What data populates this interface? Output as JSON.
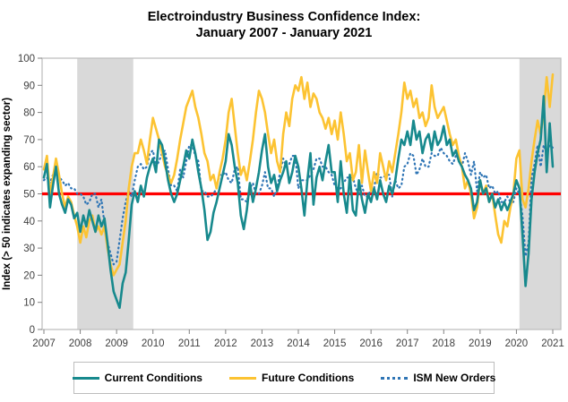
{
  "title": {
    "line1": "Electroindustry Business Confidence Index:",
    "line2": "January 2007 - January 2021"
  },
  "y_axis": {
    "label": "Index (> 50 indicates expanding sector)"
  },
  "colors": {
    "current_conditions": "#17898d",
    "future_conditions": "#fcc332",
    "ism_new_orders": "#2f75b5",
    "reference_line": "#ff0000",
    "recession_band": "#d9d9d9",
    "frame": "#bfbfbf",
    "tick": "#808080",
    "tick_text": "#404040"
  },
  "chart_data": {
    "type": "line",
    "title": "Electroindustry Business Confidence Index: January 2007 - January 2021",
    "xlabel": "",
    "ylabel": "Index (> 50 indicates expanding sector)",
    "ylim": [
      0,
      100
    ],
    "y_ticks": [
      0,
      10,
      20,
      30,
      40,
      50,
      60,
      70,
      80,
      90,
      100
    ],
    "x_tick_years": [
      "2007",
      "2008",
      "2009",
      "2010",
      "2011",
      "2012",
      "2013",
      "2014",
      "2015",
      "2016",
      "2017",
      "2018",
      "2019",
      "2020",
      "2021"
    ],
    "x_unit": "month_index_from_2007-01",
    "grid": false,
    "legend_position": "bottom",
    "reference_line": {
      "value": 50,
      "color": "#ff0000"
    },
    "recession_bands": [
      {
        "start_month": 11,
        "end_month": 29.5
      },
      {
        "start_month": 157,
        "end_month": null
      }
    ],
    "series": [
      {
        "name": "Current Conditions",
        "color": "#17898d",
        "dash": "solid",
        "values": [
          56,
          61,
          45,
          53,
          60,
          50,
          46,
          43,
          48,
          46,
          41,
          43,
          36,
          42,
          38,
          44,
          40,
          36,
          42,
          38,
          41,
          32,
          22,
          14,
          11,
          8,
          17,
          21,
          33,
          46,
          51,
          47,
          53,
          49,
          56,
          60,
          63,
          58,
          70,
          68,
          62,
          55,
          50,
          47,
          50,
          55,
          60,
          66,
          63,
          70,
          65,
          58,
          52,
          44,
          33,
          36,
          43,
          47,
          52,
          57,
          62,
          72,
          68,
          60,
          54,
          42,
          37,
          44,
          54,
          47,
          52,
          58,
          66,
          72,
          60,
          54,
          57,
          51,
          55,
          58,
          62,
          54,
          58,
          64,
          60,
          52,
          42,
          55,
          65,
          46,
          56,
          60,
          55,
          62,
          68,
          58,
          58,
          47,
          62,
          50,
          43,
          57,
          44,
          42,
          55,
          48,
          43,
          50,
          47,
          52,
          48,
          55,
          50,
          47,
          53,
          50,
          55,
          63,
          70,
          68,
          73,
          68,
          77,
          70,
          73,
          65,
          70,
          72,
          66,
          73,
          68,
          70,
          75,
          68,
          70,
          64,
          66,
          62,
          60,
          57,
          55,
          52,
          44,
          47,
          55,
          50,
          52,
          47,
          50,
          45,
          48,
          44,
          47,
          44,
          47,
          50,
          55,
          52,
          35,
          16,
          28,
          48,
          58,
          65,
          70,
          86,
          58,
          76,
          60
        ]
      },
      {
        "name": "Future Conditions",
        "color": "#fcc332",
        "dash": "solid",
        "values": [
          59,
          64,
          50,
          56,
          63,
          57,
          50,
          45,
          49,
          47,
          42,
          38,
          32,
          38,
          34,
          40,
          42,
          36,
          38,
          35,
          38,
          30,
          24,
          20,
          22,
          24,
          32,
          40,
          52,
          60,
          65,
          65,
          70,
          66,
          61,
          70,
          78,
          74,
          70,
          65,
          60,
          57,
          54,
          57,
          63,
          70,
          76,
          82,
          85,
          88,
          82,
          78,
          72,
          65,
          62,
          55,
          57,
          52,
          58,
          63,
          70,
          80,
          85,
          75,
          65,
          57,
          60,
          55,
          62,
          70,
          80,
          88,
          85,
          80,
          72,
          65,
          70,
          62,
          58,
          72,
          80,
          75,
          85,
          90,
          88,
          93,
          85,
          91,
          82,
          87,
          85,
          80,
          78,
          74,
          78,
          72,
          77,
          70,
          80,
          72,
          62,
          65,
          55,
          58,
          68,
          54,
          66,
          58,
          51,
          58,
          54,
          65,
          60,
          55,
          62,
          58,
          65,
          72,
          80,
          91,
          85,
          88,
          82,
          85,
          78,
          80,
          75,
          78,
          90,
          82,
          78,
          80,
          82,
          77,
          72,
          68,
          70,
          64,
          60,
          52,
          55,
          50,
          41,
          45,
          55,
          50,
          53,
          47,
          50,
          42,
          35,
          32,
          40,
          38,
          45,
          50,
          63,
          66,
          48,
          45,
          52,
          62,
          70,
          77,
          72,
          80,
          93,
          82,
          94
        ]
      },
      {
        "name": "ISM New Orders",
        "color": "#2f75b5",
        "dash": "dotted",
        "values": [
          55,
          56,
          54,
          57,
          58,
          56,
          55,
          53,
          54,
          52,
          52,
          50,
          50,
          49,
          46,
          47,
          50,
          50,
          45,
          48,
          39,
          32,
          28,
          24,
          25,
          33,
          41,
          47,
          51,
          49,
          55,
          60,
          61,
          59,
          60,
          65,
          66,
          60,
          62,
          65,
          66,
          59,
          53,
          53,
          51,
          59,
          56,
          62,
          68,
          68,
          64,
          62,
          51,
          51,
          49,
          49,
          50,
          52,
          57,
          57,
          58,
          55,
          54,
          59,
          60,
          48,
          48,
          47,
          52,
          54,
          50,
          50,
          53,
          58,
          52,
          52,
          49,
          52,
          58,
          63,
          60,
          61,
          64,
          64,
          52,
          55,
          55,
          55,
          57,
          59,
          63,
          63,
          60,
          60,
          58,
          57,
          53,
          52,
          52,
          54,
          56,
          56,
          56,
          52,
          50,
          53,
          49,
          49,
          52,
          52,
          58,
          56,
          56,
          57,
          57,
          49,
          55,
          52,
          53,
          60,
          61,
          65,
          64,
          57,
          59,
          63,
          60,
          60,
          65,
          64,
          64,
          67,
          65,
          64,
          62,
          61,
          64,
          63,
          60,
          65,
          62,
          57,
          62,
          51,
          58,
          56,
          57,
          52,
          53,
          50,
          51,
          47,
          47,
          49,
          47,
          47,
          52,
          50,
          42,
          27,
          32,
          56,
          61,
          68,
          60,
          68,
          65,
          68,
          67
        ]
      }
    ]
  }
}
